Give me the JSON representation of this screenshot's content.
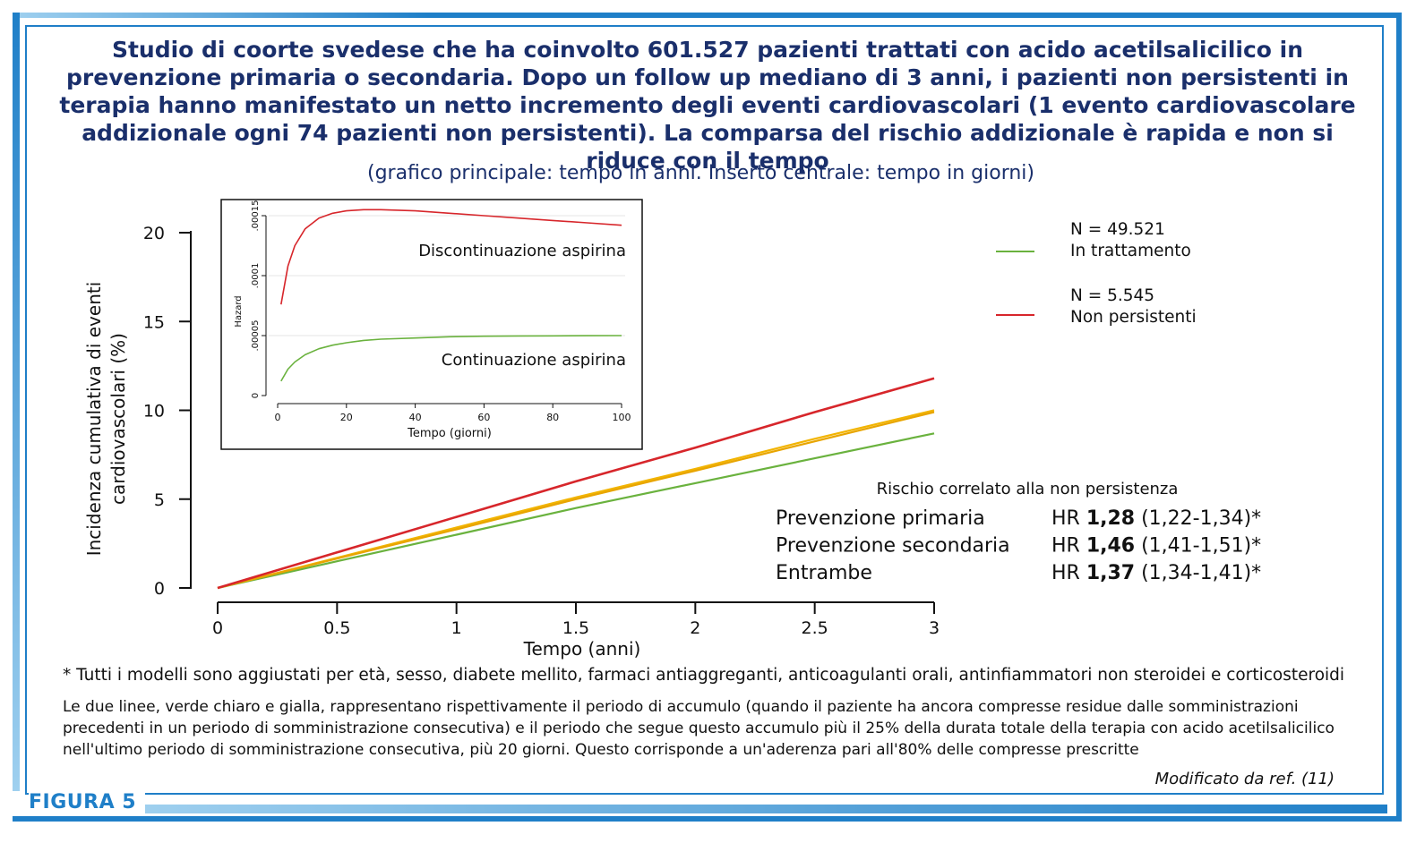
{
  "figure_label": "FIGURA 5",
  "title": "Studio di coorte svedese che ha coinvolto 601.527 pazienti trattati con acido acetilsalicilico in prevenzione primaria o secondaria. Dopo un follow up mediano di 3 anni, i pazienti non persistenti in terapia hanno manifestato un netto incremento degli eventi cardiovascolari (1 evento cardiovascolare addizionale ogni 74 pazienti non persistenti). La comparsa del rischio addizionale è rapida e non si riduce con il tempo",
  "subtitle": "(grafico principale: tempo in anni. Inserto centrale: tempo in giorni)",
  "footnote_models": "* Tutti i modelli sono aggiustati per età, sesso, diabete mellito, farmaci antiaggreganti, anticoagulanti orali, antinfiammatori non steroidei e corticosteroidi",
  "footnote_lines": "Le due linee, verde chiaro e gialla, rappresentano rispettivamente il periodo di accumulo (quando il paziente ha ancora compresse residue dalle somministrazioni precedenti in un periodo di somministrazione consecutiva) e il periodo che segue questo accumulo più il 25% della durata totale della terapia con acido acetilsalicilico nell'ultimo periodo di somministrazione consecutiva, più 20 giorni. Questo corrisponde a un'aderenza pari all'80% delle compresse prescritte",
  "source": "Modificato da ref. (11)",
  "colors": {
    "frame": "#1f7fc8",
    "title": "#1a2f6b",
    "green": "#6ab23e",
    "red": "#d7262b",
    "yellow": "#f2b400"
  },
  "chart_data": [
    {
      "type": "line",
      "xlabel": "Tempo (anni)",
      "ylabel": [
        "Incidenza cumulativa di eventi",
        "cardiovascolari (%)"
      ],
      "xlim": [
        0,
        3
      ],
      "ylim": [
        0,
        20
      ],
      "xticks": [
        "0",
        "0.5",
        "1",
        "1.5",
        "2",
        "2.5",
        "3"
      ],
      "yticks": [
        "0",
        "5",
        "10",
        "15",
        "20"
      ],
      "x": [
        0,
        0.5,
        1,
        1.5,
        2,
        2.5,
        3
      ],
      "series": [
        {
          "name": "In trattamento",
          "color": "#6ab23e",
          "values": [
            0,
            1.5,
            3.0,
            4.5,
            5.9,
            7.3,
            8.7
          ]
        },
        {
          "name": "",
          "color": "#f2b400",
          "values": [
            0,
            1.7,
            3.4,
            5.1,
            6.7,
            8.4,
            10.0
          ]
        },
        {
          "name": "",
          "color": "#e8a500",
          "values": [
            0,
            1.65,
            3.3,
            5.0,
            6.6,
            8.25,
            9.9
          ]
        },
        {
          "name": "Non persistenti",
          "color": "#d7262b",
          "values": [
            0,
            2.0,
            4.0,
            6.0,
            7.9,
            9.9,
            11.8
          ]
        }
      ],
      "legend": {
        "placement": "right",
        "entries": [
          {
            "n_label": "N = 49.521",
            "label": "In trattamento",
            "color": "#6ab23e"
          },
          {
            "n_label": "N = 5.545",
            "label": "Non persistenti",
            "color": "#d7262b"
          }
        ]
      },
      "annotation": {
        "title": "Rischio correlato alla non persistenza",
        "rows": [
          {
            "label": "Prevenzione primaria",
            "hr_prefix": "HR ",
            "hr": "1,28",
            "ci": " (1,22-1,34)*"
          },
          {
            "label": "Prevenzione secondaria",
            "hr_prefix": "HR ",
            "hr": "1,46",
            "ci": " (1,41-1,51)*"
          },
          {
            "label": "Entrambe",
            "hr_prefix": "HR ",
            "hr": "1,37",
            "ci": " (1,34-1,41)*"
          }
        ]
      }
    },
    {
      "type": "line",
      "xlabel": "Tempo (giorni)",
      "ylabel": "Hazard",
      "xlim": [
        0,
        100
      ],
      "ylim": [
        0,
        0.00015
      ],
      "xticks": [
        "0",
        "20",
        "40",
        "60",
        "80",
        "100"
      ],
      "yticks": [
        "0",
        ".00005",
        ".0001",
        ".00015"
      ],
      "x": [
        1,
        3,
        5,
        8,
        12,
        16,
        20,
        25,
        30,
        40,
        50,
        60,
        70,
        80,
        90,
        100
      ],
      "series": [
        {
          "name": "Discontinuazione aspirina",
          "color": "#d7262b",
          "values": [
            7.6e-05,
            0.000108,
            0.000125,
            0.000139,
            0.000148,
            0.000152,
            0.000154,
            0.000155,
            0.000155,
            0.000154,
            0.000152,
            0.00015,
            0.000148,
            0.000146,
            0.000144,
            0.000142
          ]
        },
        {
          "name": "Continuazione aspirina",
          "color": "#6ab23e",
          "values": [
            1.2e-05,
            2.2e-05,
            2.8e-05,
            3.4e-05,
            3.9e-05,
            4.2e-05,
            4.4e-05,
            4.6e-05,
            4.7e-05,
            4.8e-05,
            4.9e-05,
            4.95e-05,
            4.97e-05,
            4.98e-05,
            4.99e-05,
            5e-05
          ]
        }
      ]
    }
  ]
}
